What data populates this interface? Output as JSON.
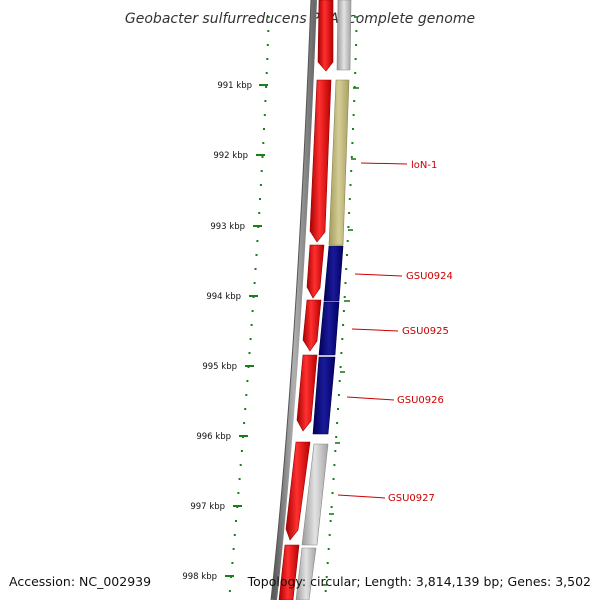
{
  "title": "Geobacter sulfurreducens PCA, complete genome",
  "accession_label": "Accession: NC_002939",
  "topology_label": "Topology: circular; Length: 3,814,139 bp; Genes: 3,502",
  "kbp_ticks": [
    "991 kbp",
    "992 kbp",
    "993 kbp",
    "994 kbp",
    "995 kbp",
    "996 kbp",
    "997 kbp",
    "998 kbp"
  ],
  "gene_labels": [
    "loN-1",
    "GSU0924",
    "GSU0925",
    "GSU0926",
    "GSU0927"
  ],
  "colors": {
    "forward_strand": "#ff0000",
    "reverse_unlabeled": "#bdbdbd",
    "rna_feature": "#bfb87a",
    "labeled_gene": "#000080",
    "tick_green": "#1a7f1a",
    "label_red": "#cc0000",
    "backbone": "#8a8a8a"
  }
}
